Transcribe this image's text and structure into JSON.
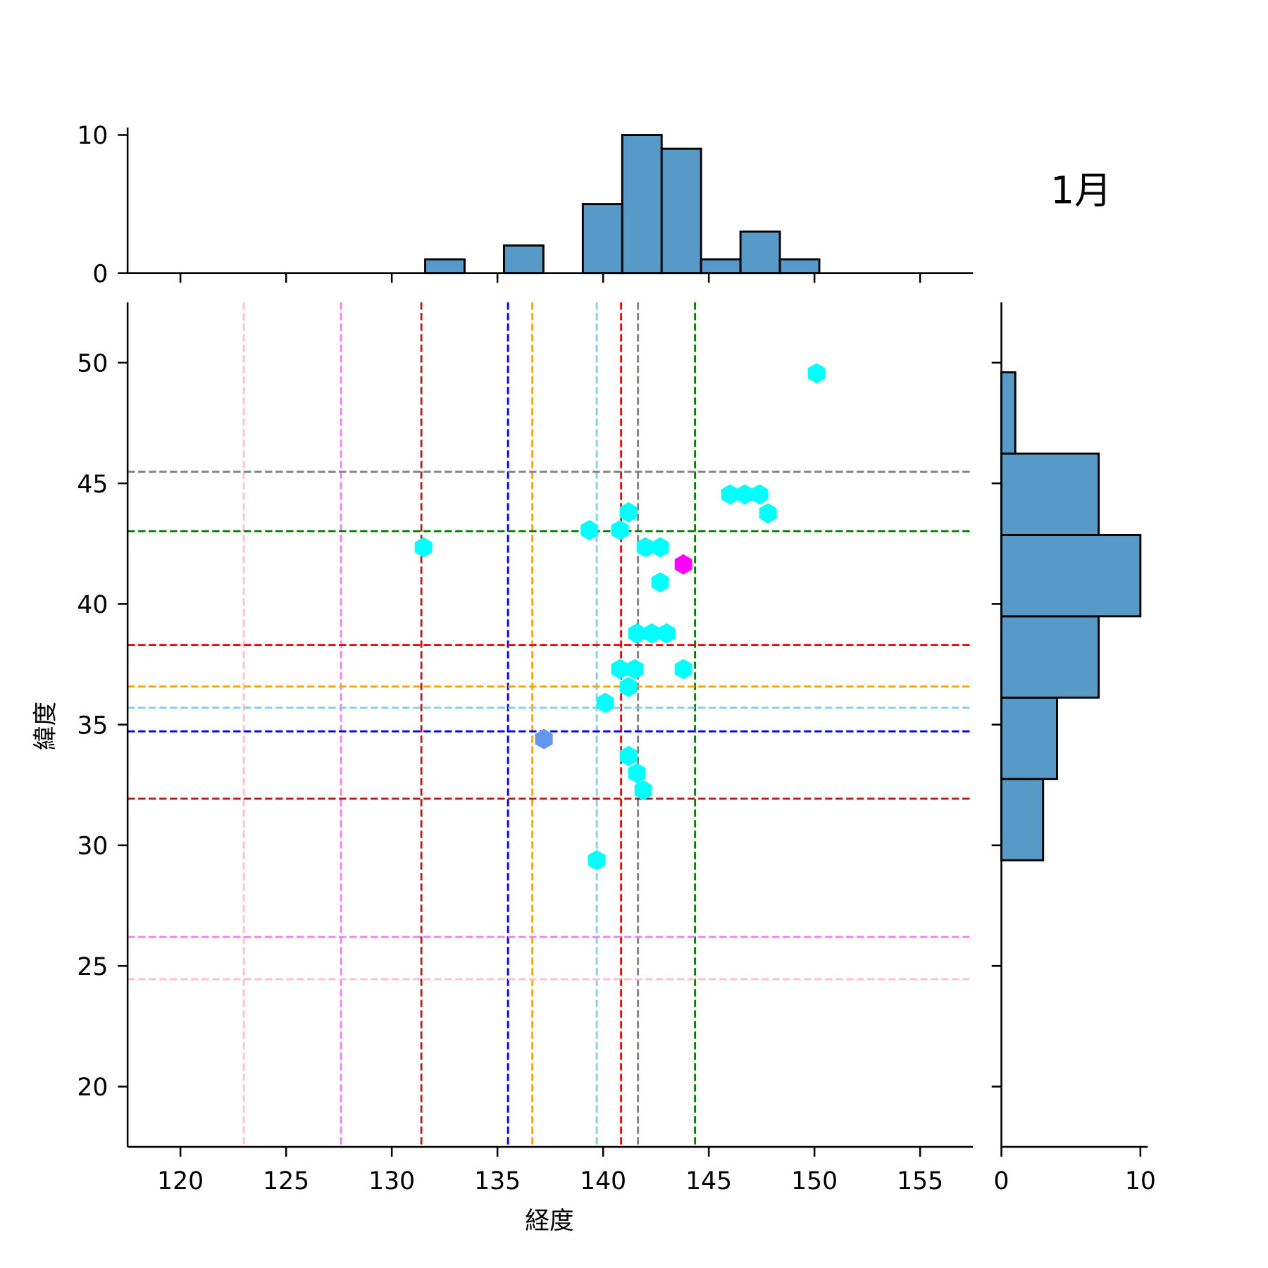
{
  "chart_data": [
    {
      "type": "scatter",
      "subtype": "hexbin",
      "xlabel": "経度",
      "ylabel": "緯度",
      "xlim": [
        117.5,
        157.5
      ],
      "ylim": [
        17.5,
        52.5
      ],
      "xticks": [
        120,
        125,
        130,
        135,
        140,
        145,
        150,
        155
      ],
      "yticks": [
        20,
        25,
        30,
        35,
        40,
        45,
        50
      ],
      "grid": false,
      "points": [
        {
          "x": 150.1,
          "y": 49.56,
          "color": "#00ffff"
        },
        {
          "x": 146.0,
          "y": 44.54,
          "color": "#00ffff"
        },
        {
          "x": 146.7,
          "y": 44.54,
          "color": "#00ffff"
        },
        {
          "x": 147.4,
          "y": 44.54,
          "color": "#00ffff"
        },
        {
          "x": 147.8,
          "y": 43.76,
          "color": "#00ffff"
        },
        {
          "x": 141.2,
          "y": 43.8,
          "color": "#00ffff"
        },
        {
          "x": 139.35,
          "y": 43.06,
          "color": "#00ffff"
        },
        {
          "x": 140.8,
          "y": 43.06,
          "color": "#00ffff"
        },
        {
          "x": 131.5,
          "y": 42.35,
          "color": "#00ffff"
        },
        {
          "x": 142.0,
          "y": 42.35,
          "color": "#00ffff"
        },
        {
          "x": 142.7,
          "y": 42.35,
          "color": "#00ffff"
        },
        {
          "x": 143.8,
          "y": 41.64,
          "color": "#ff00ff"
        },
        {
          "x": 142.7,
          "y": 40.9,
          "color": "#00ffff"
        },
        {
          "x": 141.6,
          "y": 38.78,
          "color": "#00ffff"
        },
        {
          "x": 142.3,
          "y": 38.78,
          "color": "#00ffff"
        },
        {
          "x": 143.0,
          "y": 38.78,
          "color": "#00ffff"
        },
        {
          "x": 140.8,
          "y": 37.3,
          "color": "#00ffff"
        },
        {
          "x": 141.5,
          "y": 37.3,
          "color": "#00ffff"
        },
        {
          "x": 143.8,
          "y": 37.3,
          "color": "#00ffff"
        },
        {
          "x": 141.2,
          "y": 36.56,
          "color": "#00ffff"
        },
        {
          "x": 140.1,
          "y": 35.9,
          "color": "#00ffff"
        },
        {
          "x": 137.2,
          "y": 34.4,
          "color": "#6495ed"
        },
        {
          "x": 141.2,
          "y": 33.7,
          "color": "#00ffff"
        },
        {
          "x": 141.6,
          "y": 32.99,
          "color": "#00ffff"
        },
        {
          "x": 141.9,
          "y": 32.28,
          "color": "#00ffff"
        },
        {
          "x": 139.7,
          "y": 29.38,
          "color": "#00ffff"
        }
      ],
      "vlines": [
        {
          "x": 123.0,
          "color": "#ffc0cb"
        },
        {
          "x": 127.6,
          "color": "#ee82ee"
        },
        {
          "x": 131.4,
          "color": "#b22222"
        },
        {
          "x": 135.5,
          "color": "#0000ff"
        },
        {
          "x": 136.65,
          "color": "#ffa500"
        },
        {
          "x": 139.7,
          "color": "#87ceeb"
        },
        {
          "x": 140.85,
          "color": "#ff0000"
        },
        {
          "x": 141.65,
          "color": "#808080"
        },
        {
          "x": 144.35,
          "color": "#008000"
        }
      ],
      "hlines": [
        {
          "y": 45.48,
          "color": "#808080"
        },
        {
          "y": 43.02,
          "color": "#008000"
        },
        {
          "y": 38.3,
          "color": "#ff0000"
        },
        {
          "y": 36.58,
          "color": "#ffa500"
        },
        {
          "y": 35.7,
          "color": "#87ceeb"
        },
        {
          "y": 34.72,
          "color": "#0000ff"
        },
        {
          "y": 31.93,
          "color": "#b22222"
        },
        {
          "y": 26.2,
          "color": "#ee82ee"
        },
        {
          "y": 24.45,
          "color": "#ffc0cb"
        }
      ]
    },
    {
      "type": "bar",
      "subtype": "histogram-top",
      "bin_start": 131.58,
      "bin_width": 1.865,
      "counts": [
        1,
        0,
        2,
        0,
        5,
        10,
        9,
        1,
        3,
        1
      ],
      "ylim": [
        0,
        10.5
      ],
      "yticks": [
        0,
        10
      ],
      "color": "#5799c7"
    },
    {
      "type": "bar",
      "subtype": "histogram-right",
      "bin_start": 29.38,
      "bin_width": 3.37,
      "counts": [
        3,
        4,
        7,
        10,
        7,
        1
      ],
      "xlim": [
        0,
        10.5
      ],
      "xticks": [
        0,
        10
      ],
      "color": "#5799c7"
    }
  ],
  "title": "1月"
}
